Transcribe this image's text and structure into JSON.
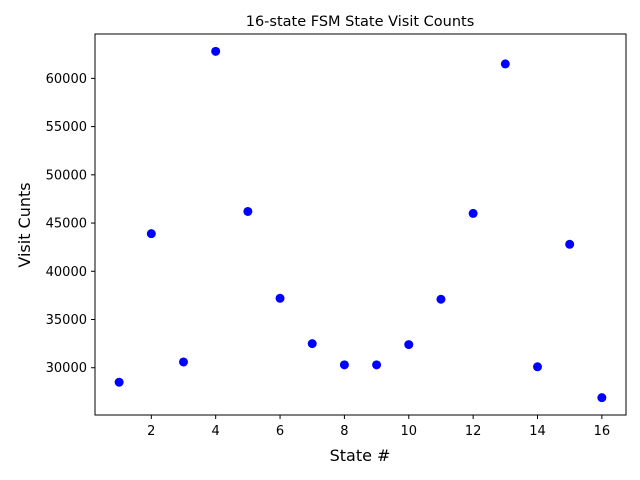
{
  "chart_data": {
    "type": "scatter",
    "title": "16-state FSM State Visit Counts",
    "xlabel": "State #",
    "ylabel": "Visit Cunts",
    "x": [
      1,
      2,
      3,
      4,
      5,
      6,
      7,
      8,
      9,
      10,
      11,
      12,
      13,
      14,
      15,
      16
    ],
    "y": [
      28500,
      43900,
      30600,
      62800,
      46200,
      37200,
      32500,
      30300,
      30300,
      32400,
      37100,
      46000,
      61500,
      30100,
      42800,
      26900
    ],
    "xlim": [
      0.25,
      16.75
    ],
    "ylim": [
      25100,
      64600
    ],
    "xticks": [
      2,
      4,
      6,
      8,
      10,
      12,
      14,
      16
    ],
    "yticks": [
      30000,
      35000,
      40000,
      45000,
      50000,
      55000,
      60000
    ],
    "marker_color": "#0000ff",
    "grid": false,
    "legend": "none"
  }
}
